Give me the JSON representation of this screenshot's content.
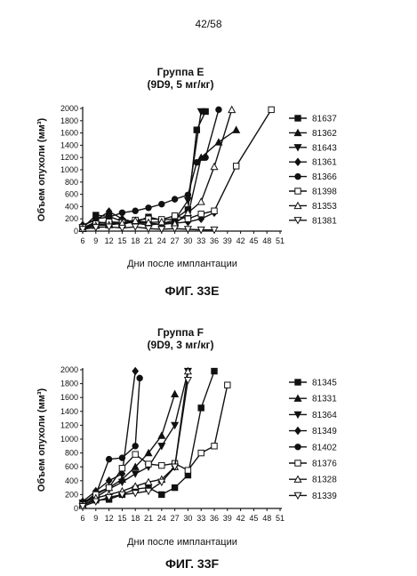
{
  "page": {
    "number": "42/58"
  },
  "chart_data": [
    {
      "type": "line",
      "title": "Группа E",
      "subtitle": "(9D9, 5 мг/кг)",
      "xlabel": "Дни после имплантации",
      "ylabel": "Объем опухоли (мм³)",
      "xticks": [
        6,
        9,
        12,
        15,
        18,
        21,
        24,
        27,
        30,
        33,
        36,
        39,
        42,
        45,
        48,
        51
      ],
      "yticks": [
        0,
        200,
        400,
        600,
        800,
        1000,
        1200,
        1400,
        1600,
        1800,
        2000
      ],
      "xlim": [
        6,
        51
      ],
      "ylim": [
        0,
        2000
      ],
      "caption": "ФИГ. 33E",
      "series": [
        {
          "name": "81637",
          "marker": "square-filled",
          "x": [
            6,
            9,
            12,
            15,
            18,
            21,
            24,
            27,
            30,
            32,
            34
          ],
          "y": [
            50,
            260,
            240,
            160,
            150,
            230,
            180,
            200,
            350,
            1650,
            1950
          ]
        },
        {
          "name": "81362",
          "marker": "triangle-up-filled",
          "x": [
            6,
            9,
            12,
            15,
            18,
            21,
            24,
            27,
            30,
            33,
            37,
            41
          ],
          "y": [
            50,
            150,
            130,
            110,
            160,
            120,
            110,
            150,
            250,
            1200,
            1450,
            1650
          ]
        },
        {
          "name": "81643",
          "marker": "triangle-down-filled",
          "x": [
            6,
            9,
            12,
            15,
            18,
            21,
            24,
            27,
            30,
            33
          ],
          "y": [
            60,
            100,
            120,
            150,
            130,
            100,
            120,
            180,
            500,
            1950
          ]
        },
        {
          "name": "81361",
          "marker": "diamond-filled",
          "x": [
            6,
            9,
            12,
            15,
            18,
            21,
            24,
            27,
            30,
            33,
            36
          ],
          "y": [
            100,
            180,
            320,
            200,
            140,
            130,
            110,
            130,
            150,
            200,
            300
          ]
        },
        {
          "name": "81366",
          "marker": "circle-filled",
          "x": [
            6,
            9,
            12,
            15,
            18,
            21,
            24,
            27,
            30,
            32,
            34,
            37
          ],
          "y": [
            80,
            200,
            230,
            300,
            330,
            380,
            440,
            520,
            590,
            1120,
            1200,
            1980
          ]
        },
        {
          "name": "81398",
          "marker": "square-open",
          "x": [
            6,
            9,
            12,
            15,
            18,
            21,
            24,
            27,
            30,
            33,
            36,
            41,
            49
          ],
          "y": [
            60,
            120,
            150,
            140,
            180,
            200,
            190,
            250,
            200,
            280,
            330,
            1060,
            1980
          ]
        },
        {
          "name": "81353",
          "marker": "triangle-up-open",
          "x": [
            6,
            9,
            12,
            15,
            18,
            21,
            24,
            27,
            30,
            33,
            36,
            40
          ],
          "y": [
            40,
            90,
            100,
            130,
            170,
            140,
            150,
            120,
            300,
            480,
            1050,
            1980
          ]
        },
        {
          "name": "81381",
          "marker": "triangle-down-open",
          "x": [
            6,
            9,
            12,
            15,
            18,
            21,
            24,
            27,
            30,
            33,
            36
          ],
          "y": [
            30,
            60,
            70,
            50,
            70,
            40,
            30,
            40,
            30,
            20,
            20
          ]
        }
      ]
    },
    {
      "type": "line",
      "title": "Группа F",
      "subtitle": "(9D9, 3 мг/кг)",
      "xlabel": "Дни после имплантации",
      "ylabel": "Объем опухоли (мм³)",
      "xticks": [
        6,
        9,
        12,
        15,
        18,
        21,
        24,
        27,
        30,
        33,
        36,
        39,
        42,
        45,
        48,
        51
      ],
      "yticks": [
        0,
        200,
        400,
        600,
        800,
        1000,
        1200,
        1400,
        1600,
        1800,
        2000
      ],
      "xlim": [
        6,
        51
      ],
      "ylim": [
        0,
        2000
      ],
      "caption": "ФИГ. 33F",
      "series": [
        {
          "name": "81345",
          "marker": "square-filled",
          "x": [
            6,
            9,
            12,
            15,
            18,
            21,
            24,
            27,
            30,
            33,
            36
          ],
          "y": [
            50,
            120,
            130,
            200,
            280,
            300,
            200,
            300,
            480,
            1450,
            1980
          ]
        },
        {
          "name": "81331",
          "marker": "triangle-up-filled",
          "x": [
            6,
            9,
            12,
            15,
            18,
            21,
            24,
            27
          ],
          "y": [
            60,
            220,
            300,
            420,
            600,
            800,
            1050,
            1650
          ]
        },
        {
          "name": "81364",
          "marker": "triangle-down-filled",
          "x": [
            6,
            9,
            12,
            15,
            18,
            21,
            24,
            27,
            30
          ],
          "y": [
            80,
            160,
            280,
            380,
            500,
            600,
            900,
            1200,
            1980
          ]
        },
        {
          "name": "81349",
          "marker": "diamond-filled",
          "x": [
            6,
            9,
            12,
            15,
            18
          ],
          "y": [
            100,
            250,
            400,
            500,
            1980
          ]
        },
        {
          "name": "81402",
          "marker": "circle-filled",
          "x": [
            6,
            9,
            12,
            15,
            18,
            19
          ],
          "y": [
            80,
            200,
            710,
            730,
            900,
            1880
          ]
        },
        {
          "name": "81376",
          "marker": "square-open",
          "x": [
            6,
            9,
            12,
            15,
            18,
            21,
            24,
            27,
            30,
            33,
            36,
            39
          ],
          "y": [
            50,
            200,
            300,
            580,
            780,
            640,
            620,
            650,
            550,
            800,
            900,
            1780
          ]
        },
        {
          "name": "81328",
          "marker": "triangle-up-open",
          "x": [
            6,
            9,
            12,
            15,
            18,
            21,
            24,
            27,
            30
          ],
          "y": [
            40,
            150,
            200,
            250,
            320,
            380,
            420,
            600,
            1980
          ]
        },
        {
          "name": "81339",
          "marker": "triangle-down-open",
          "x": [
            6,
            9,
            12,
            15,
            18,
            21,
            24,
            27,
            30
          ],
          "y": [
            30,
            100,
            160,
            200,
            220,
            250,
            380,
            600,
            1850
          ]
        }
      ]
    }
  ]
}
